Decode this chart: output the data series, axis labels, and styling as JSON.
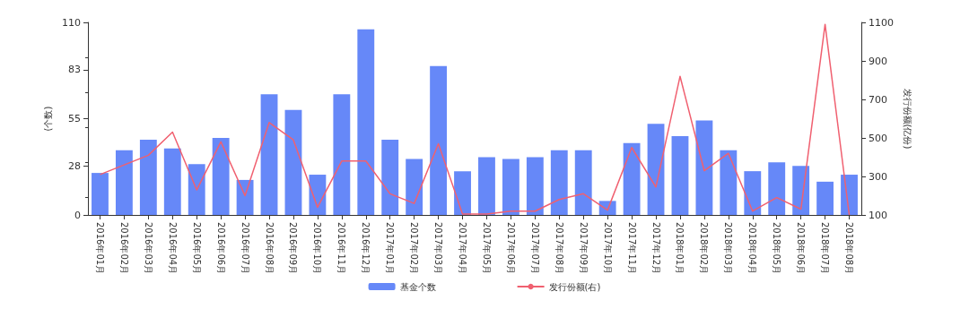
{
  "chart_data": {
    "type": "bar",
    "ylabel": "(个数)",
    "y2label": "发行份额(亿份)",
    "categories": [
      "2016年01月",
      "2016年02月",
      "2016年03月",
      "2016年04月",
      "2016年05月",
      "2016年06月",
      "2016年07月",
      "2016年08月",
      "2016年09月",
      "2016年10月",
      "2016年11月",
      "2016年12月",
      "2017年01月",
      "2017年02月",
      "2017年03月",
      "2017年04月",
      "2017年05月",
      "2017年06月",
      "2017年07月",
      "2017年08月",
      "2017年09月",
      "2017年10月",
      "2017年11月",
      "2017年12月",
      "2018年01月",
      "2018年02月",
      "2018年03月",
      "2018年04月",
      "2018年05月",
      "2018年06月",
      "2018年07月",
      "2018年08月"
    ],
    "series": [
      {
        "name": "基金个数",
        "color": "#6688f8",
        "values": [
          24,
          37,
          43,
          38,
          29,
          44,
          20,
          69,
          60,
          23,
          69,
          106,
          43,
          32,
          85,
          25,
          33,
          32,
          33,
          37,
          37,
          8,
          41,
          52,
          45,
          54,
          37,
          25,
          30,
          28,
          19,
          23
        ]
      },
      {
        "name": "发行份额(右)",
        "type": "line",
        "axis": "y2",
        "color": "#f06070",
        "values": [
          310,
          360,
          410,
          530,
          230,
          480,
          200,
          580,
          490,
          140,
          380,
          380,
          210,
          160,
          470,
          105,
          105,
          120,
          120,
          180,
          210,
          125,
          450,
          245,
          820,
          330,
          420,
          120,
          190,
          130,
          1090,
          100
        ]
      }
    ],
    "ylim": [
      0,
      110
    ],
    "yticks": [
      0,
      28,
      55,
      83,
      110
    ],
    "y2lim": [
      100,
      1100
    ],
    "y2ticks": [
      100,
      300,
      500,
      700,
      900,
      1100
    ],
    "grid": false,
    "legend": "bottom",
    "marker": "none",
    "line_style": "solid"
  }
}
